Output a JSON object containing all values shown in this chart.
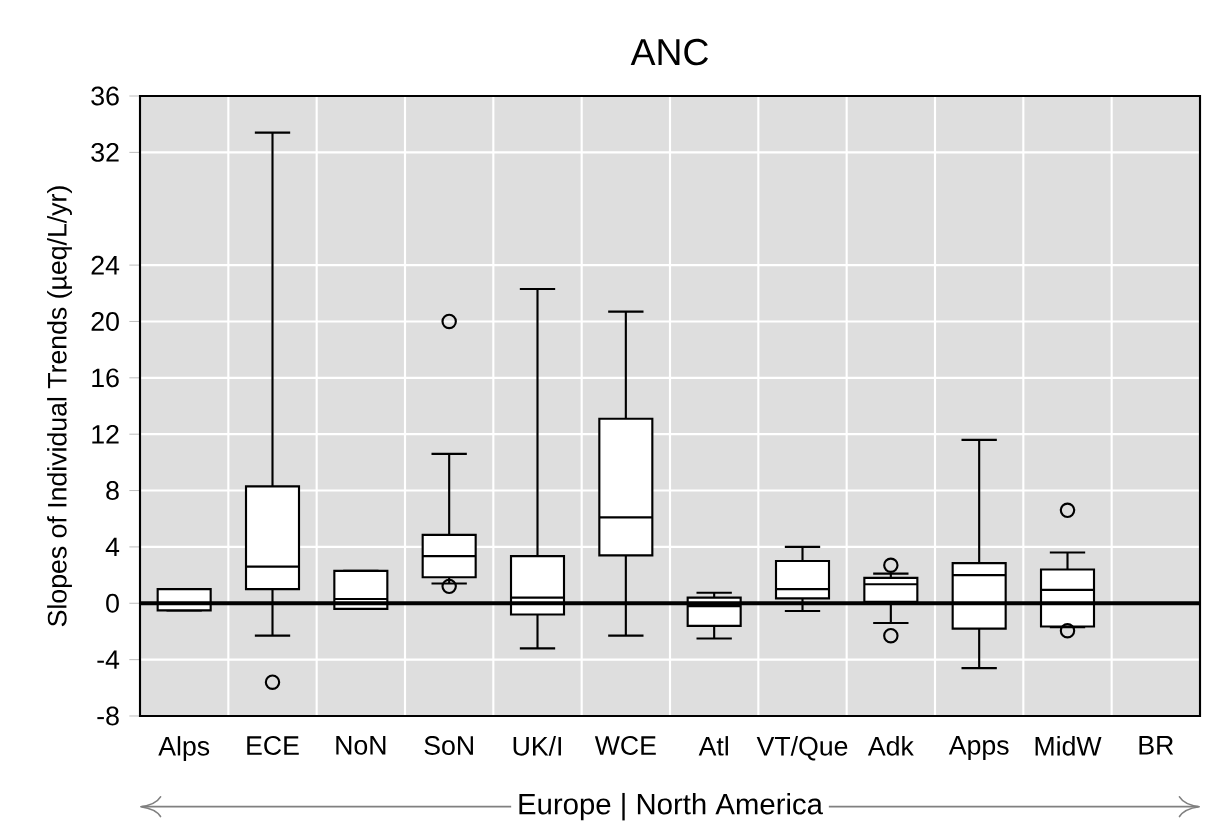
{
  "chart_data": {
    "type": "box",
    "title": "ANC",
    "ylabel": "Slopes of Individual Trends (µeq/L/yr)",
    "categories": [
      "Alps",
      "ECE",
      "NoN",
      "SoN",
      "UK/I",
      "WCE",
      "Atl",
      "VT/Que",
      "Adk",
      "Apps",
      "MidW",
      "BR"
    ],
    "boxes": [
      {
        "low": -0.5,
        "q1": -0.5,
        "median": 0,
        "q3": 1.0,
        "high": 1.0
      },
      {
        "low": -2.3,
        "q1": 1.0,
        "median": 2.6,
        "q3": 8.3,
        "high": 33.4,
        "outliers": [
          -5.6
        ]
      },
      {
        "low": -0.4,
        "q1": -0.4,
        "median": 0.3,
        "q3": 2.3,
        "high": 2.3
      },
      {
        "low": 1.4,
        "q1": 1.85,
        "median": 3.35,
        "q3": 4.85,
        "high": 10.6,
        "outliers": [
          1.2,
          20
        ]
      },
      {
        "low": -3.2,
        "q1": -0.8,
        "median": 0.4,
        "q3": 3.35,
        "high": 22.3
      },
      {
        "low": -2.3,
        "q1": 3.4,
        "median": 6.1,
        "q3": 13.1,
        "high": 20.7
      },
      {
        "low": -2.5,
        "q1": -1.6,
        "median": -0.2,
        "q3": 0.4,
        "high": 0.75
      },
      {
        "low": -0.55,
        "q1": 0.35,
        "median": 1.0,
        "q3": 3.0,
        "high": 4.0
      },
      {
        "low": -1.4,
        "q1": 0.1,
        "median": 1.35,
        "q3": 1.8,
        "high": 2.1,
        "outliers": [
          2.7,
          -2.3
        ]
      },
      {
        "low": -4.6,
        "q1": -1.8,
        "median": 2.0,
        "q3": 2.85,
        "high": 11.6
      },
      {
        "low": -1.7,
        "q1": -1.65,
        "median": 0.95,
        "q3": 2.4,
        "high": 3.6,
        "outliers": [
          6.6,
          -1.95
        ]
      },
      null
    ],
    "ylim": [
      -8,
      36
    ],
    "yticks": [
      -8,
      -4,
      0,
      4,
      8,
      12,
      16,
      20,
      24,
      32,
      36
    ],
    "grid": true,
    "ref_lines": [
      {
        "axis": "y",
        "value": 0,
        "color": "#000000"
      }
    ],
    "annotations": [
      "Europe | North America"
    ]
  }
}
